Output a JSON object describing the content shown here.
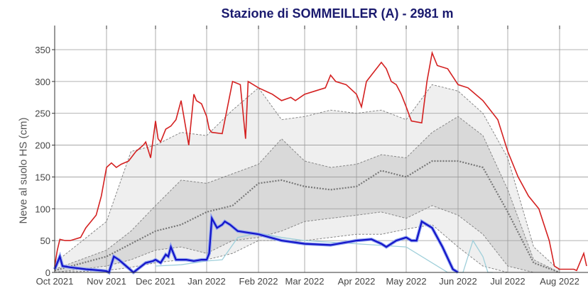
{
  "chart_data": {
    "type": "line",
    "title": "Stazione di SOMMEILLER (A) - 2981 m",
    "xlabel": "",
    "ylabel": "Neve al suolo HS (cm)",
    "ylim": [
      0,
      385
    ],
    "yticks": [
      0,
      50,
      100,
      150,
      200,
      250,
      300,
      350
    ],
    "xticks": [
      "Oct 2021",
      "Nov 2021",
      "Dec 2021",
      "Jan 2022",
      "Feb 2022",
      "Mar 2022",
      "Apr 2022",
      "May 2022",
      "Jun 2022",
      "Jul 2022",
      "Aug 2022"
    ],
    "grid": true,
    "legend": "none",
    "colors": {
      "max": "#d42020",
      "current": "#1414c8",
      "current_outline": "#8ca0f0",
      "previous": "#9fcfda",
      "band_outer": "#efefef",
      "band_inner": "#d9d9d9",
      "percentile_line": "#888888",
      "median": "#777777"
    },
    "x_months_index": [
      0,
      1,
      2,
      3,
      4,
      5,
      6,
      7,
      8,
      9,
      10
    ],
    "series": [
      {
        "name": "Maximum HS",
        "style": "red line",
        "x": [
          0,
          0.05,
          0.1,
          0.2,
          0.3,
          0.5,
          0.6,
          0.8,
          0.9,
          1.0,
          1.1,
          1.2,
          1.3,
          1.45,
          1.6,
          1.75,
          1.8,
          1.9,
          2.0,
          2.05,
          2.1,
          2.2,
          2.3,
          2.4,
          2.5,
          2.65,
          2.75,
          2.8,
          2.9,
          3.0,
          3.05,
          3.1,
          3.3,
          3.5,
          3.65,
          3.75,
          3.8,
          3.9,
          4.0,
          4.3,
          4.5,
          4.7,
          4.8,
          5.0,
          5.2,
          5.4,
          5.5,
          5.6,
          5.8,
          6.0,
          6.1,
          6.2,
          6.5,
          6.6,
          6.7,
          6.8,
          6.9,
          7.0,
          7.1,
          7.3,
          7.4,
          7.5,
          7.6,
          7.8,
          8.0,
          8.2,
          8.5,
          8.8,
          9.0,
          9.2,
          9.4,
          9.6,
          9.7,
          9.8,
          9.9,
          10.0,
          10.2,
          10.4,
          10.5,
          10.6
        ],
        "y": [
          10,
          35,
          52,
          50,
          50,
          55,
          70,
          90,
          120,
          165,
          172,
          165,
          170,
          175,
          190,
          200,
          205,
          180,
          238,
          210,
          205,
          225,
          230,
          240,
          270,
          200,
          280,
          270,
          265,
          245,
          225,
          220,
          218,
          300,
          295,
          210,
          300,
          295,
          290,
          280,
          270,
          275,
          270,
          280,
          285,
          290,
          310,
          300,
          295,
          280,
          260,
          300,
          330,
          320,
          300,
          295,
          280,
          260,
          238,
          235,
          300,
          345,
          325,
          320,
          295,
          290,
          270,
          240,
          190,
          150,
          120,
          100,
          75,
          50,
          10,
          5,
          5,
          5,
          5,
          3
        ],
        "y_end_spike": [
          {
            "x": 10.85,
            "y": 30
          },
          {
            "x": 10.95,
            "y": 10
          }
        ]
      },
      {
        "name": "Current season HS 2021-22",
        "style": "thick blue line",
        "x": [
          0,
          0.1,
          0.15,
          0.3,
          0.6,
          0.9,
          1.0,
          1.05,
          1.15,
          1.25,
          1.4,
          1.55,
          1.8,
          1.95,
          2.0,
          2.1,
          2.2,
          2.25,
          2.3,
          2.4,
          2.5,
          2.6,
          2.75,
          2.9,
          3.0,
          3.05,
          3.1,
          3.2,
          3.3,
          3.35,
          3.45,
          3.6,
          4.0,
          4.5,
          5.0,
          5.5,
          6.0,
          6.3,
          6.5,
          6.6,
          6.8,
          7.0,
          7.1,
          7.2,
          7.3,
          7.5,
          7.7,
          7.9,
          8.0
        ],
        "y": [
          5,
          25,
          10,
          8,
          5,
          3,
          2,
          0,
          25,
          20,
          10,
          0,
          15,
          18,
          20,
          15,
          28,
          25,
          40,
          20,
          20,
          20,
          18,
          20,
          20,
          30,
          85,
          70,
          75,
          80,
          75,
          65,
          60,
          50,
          45,
          43,
          50,
          52,
          45,
          40,
          50,
          55,
          50,
          50,
          80,
          70,
          40,
          5,
          0
        ]
      },
      {
        "name": "Previous season HS",
        "style": "light cyan line",
        "x": [
          2.0,
          2.5,
          3.0,
          3.3,
          3.6,
          4.0,
          4.5,
          5.0,
          6.0,
          7.0,
          7.8,
          8.1,
          8.3,
          8.5,
          8.6,
          8.7
        ],
        "y": [
          10,
          12,
          18,
          20,
          55,
          62,
          55,
          50,
          45,
          40,
          0,
          0,
          50,
          25,
          0,
          0
        ]
      },
      {
        "name": "90th percentile (upper band edge)",
        "style": "dashed grey",
        "x": [
          0,
          1,
          1.5,
          2,
          2.5,
          3,
          3.5,
          4,
          4.5,
          5,
          5.5,
          6,
          6.5,
          7,
          7.5,
          8,
          8.5,
          9,
          9.5,
          10
        ],
        "y": [
          15,
          80,
          190,
          200,
          220,
          215,
          255,
          290,
          240,
          245,
          255,
          250,
          255,
          240,
          295,
          285,
          250,
          180,
          40,
          3
        ]
      },
      {
        "name": "75th percentile",
        "style": "dashed grey",
        "x": [
          0,
          1,
          1.5,
          2,
          2.5,
          3,
          3.5,
          4,
          4.5,
          5,
          5.5,
          6,
          6.5,
          7,
          7.5,
          8,
          8.5,
          9,
          9.5,
          10
        ],
        "y": [
          5,
          35,
          65,
          105,
          145,
          140,
          155,
          170,
          210,
          175,
          165,
          170,
          185,
          180,
          220,
          245,
          215,
          130,
          20,
          0
        ]
      },
      {
        "name": "Median",
        "style": "dotted grey",
        "x": [
          0,
          1,
          1.5,
          2,
          2.5,
          3,
          3.5,
          4,
          4.5,
          5,
          5.5,
          6,
          6.5,
          7,
          7.5,
          8,
          8.5,
          9,
          9.5,
          10
        ],
        "y": [
          3,
          25,
          45,
          65,
          75,
          95,
          105,
          140,
          145,
          135,
          130,
          135,
          160,
          150,
          175,
          175,
          165,
          95,
          15,
          0
        ]
      },
      {
        "name": "25th percentile",
        "style": "dashed grey",
        "x": [
          0,
          1,
          1.5,
          2,
          2.5,
          3,
          3.5,
          4,
          4.5,
          5,
          5.5,
          6,
          6.5,
          7,
          7.5,
          8,
          8.5,
          9,
          9.5,
          10
        ],
        "y": [
          0,
          10,
          20,
          35,
          40,
          30,
          50,
          55,
          65,
          80,
          85,
          90,
          95,
          85,
          105,
          90,
          60,
          10,
          0,
          0
        ]
      },
      {
        "name": "10th percentile (lower band edge)",
        "style": "dashed grey",
        "x": [
          0,
          1,
          1.5,
          2,
          2.5,
          3,
          3.5,
          4,
          4.5,
          5,
          5.5,
          6,
          6.5,
          7,
          7.5,
          8,
          8.5,
          9,
          9.5,
          10
        ],
        "y": [
          0,
          3,
          8,
          15,
          20,
          20,
          30,
          50,
          50,
          50,
          55,
          60,
          60,
          68,
          75,
          40,
          10,
          0,
          0,
          0
        ]
      }
    ]
  }
}
